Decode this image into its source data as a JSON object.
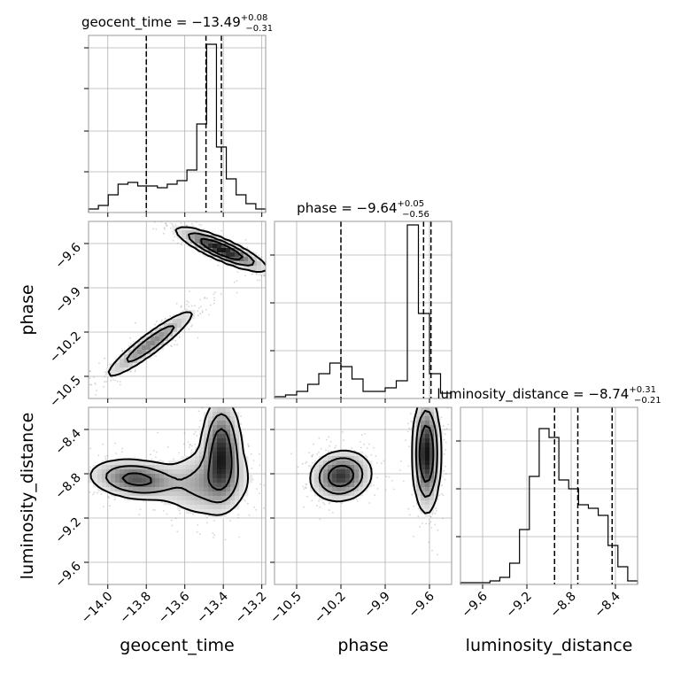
{
  "chart_data": {
    "type": "corner",
    "parameters": [
      {
        "key": "geocent_time",
        "label": "geocent_time",
        "title": {
          "prefix": "geocent_time = ",
          "median": "−13.49",
          "upper": "+0.08",
          "lower": "−0.31"
        },
        "range": [
          -14.1,
          -13.18
        ],
        "ticks": [
          -14.0,
          -13.8,
          -13.6,
          -13.4,
          -13.2
        ],
        "tick_labels": [
          "−14.0",
          "−13.8",
          "−13.6",
          "−13.4",
          "−13.2"
        ],
        "quantiles": [
          -13.8,
          -13.49,
          -13.41
        ],
        "histogram": [
          0.02,
          0.04,
          0.1,
          0.16,
          0.17,
          0.15,
          0.15,
          0.14,
          0.16,
          0.18,
          0.24,
          0.5,
          0.95,
          0.37,
          0.19,
          0.1,
          0.05,
          0.02
        ],
        "y_gridlines": [
          0.23,
          0.46,
          0.7,
          0.93
        ]
      },
      {
        "key": "phase",
        "label": "phase",
        "title": {
          "prefix": "phase = ",
          "median": "−9.64",
          "upper": "+0.05",
          "lower": "−0.56"
        },
        "range": [
          -10.65,
          -9.45
        ],
        "ticks": [
          -10.5,
          -10.2,
          -9.9,
          -9.6
        ],
        "tick_labels": [
          "−10.5",
          "−10.2",
          "−9.9",
          "−9.6"
        ],
        "quantiles": [
          -10.2,
          -9.64,
          -9.59
        ],
        "histogram": [
          0.01,
          0.02,
          0.04,
          0.08,
          0.14,
          0.2,
          0.18,
          0.11,
          0.04,
          0.04,
          0.06,
          0.1,
          0.98,
          0.48,
          0.14,
          0.03
        ],
        "y_gridlines": [
          0.27,
          0.54,
          0.81
        ]
      },
      {
        "key": "luminosity_distance",
        "label": "luminosity_distance",
        "title": {
          "prefix": "luminosity_distance = ",
          "median": "−8.74",
          "upper": "+0.31",
          "lower": "−0.21"
        },
        "range": [
          -9.8,
          -8.2
        ],
        "ticks": [
          -9.6,
          -9.2,
          -8.8,
          -8.4
        ],
        "tick_labels": [
          "−9.6",
          "−9.2",
          "−8.8",
          "−8.4"
        ],
        "quantiles": [
          -8.95,
          -8.74,
          -8.43
        ],
        "histogram": [
          0.01,
          0.01,
          0.01,
          0.02,
          0.04,
          0.12,
          0.31,
          0.61,
          0.88,
          0.83,
          0.59,
          0.54,
          0.45,
          0.43,
          0.39,
          0.22,
          0.1,
          0.02
        ],
        "y_gridlines": [
          0.27,
          0.54,
          0.81
        ]
      }
    ],
    "pairs": [
      {
        "x": "geocent_time",
        "y": "phase",
        "clusters": [
          {
            "cx": -13.41,
            "cy": -9.64,
            "sx": 0.11,
            "sy": 0.07,
            "rho": -0.85,
            "w": 0.6
          },
          {
            "cx": -13.78,
            "cy": -10.28,
            "sx": 0.12,
            "sy": 0.12,
            "rho": 0.93,
            "w": 0.4
          }
        ]
      },
      {
        "x": "geocent_time",
        "y": "luminosity_distance",
        "clusters": [
          {
            "cx": -13.41,
            "cy": -8.6,
            "sx": 0.05,
            "sy": 0.23,
            "rho": 0.0,
            "w": 0.4
          },
          {
            "cx": -13.48,
            "cy": -8.88,
            "sx": 0.12,
            "sy": 0.16,
            "rho": 0.1,
            "w": 0.3
          },
          {
            "cx": -13.85,
            "cy": -8.85,
            "sx": 0.12,
            "sy": 0.09,
            "rho": -0.2,
            "w": 0.3
          }
        ]
      },
      {
        "x": "phase",
        "y": "luminosity_distance",
        "clusters": [
          {
            "cx": -10.2,
            "cy": -8.82,
            "sx": 0.1,
            "sy": 0.11,
            "rho": 0.1,
            "w": 0.45
          },
          {
            "cx": -9.62,
            "cy": -8.62,
            "sx": 0.045,
            "sy": 0.25,
            "rho": 0.0,
            "w": 0.55
          }
        ]
      }
    ],
    "grid": true
  }
}
